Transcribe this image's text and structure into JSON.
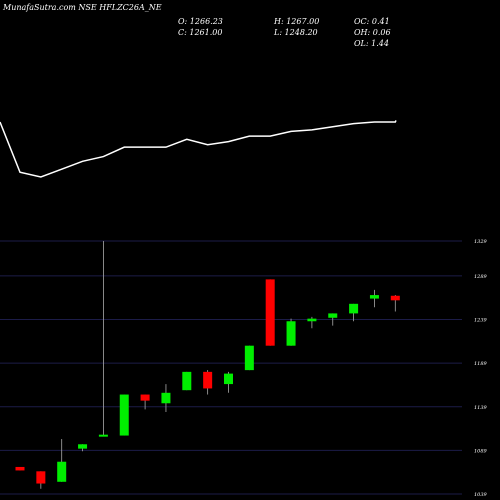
{
  "header": {
    "title": "MunafaSutra.com NSE HFLZC26A_NE",
    "ohlc": {
      "open": "O: 1266.23",
      "close": "C: 1261.00",
      "high": "H: 1267.00",
      "low": "L: 1248.20",
      "oc": "OC: 0.41",
      "oh": "OH: 0.06",
      "ol": "OL: 1.44"
    }
  },
  "colors": {
    "background": "#000000",
    "up": "#00ee00",
    "down": "#ff0000",
    "line": "#ffffff",
    "grid": "#1c1c48"
  },
  "chart_data": {
    "type": "candlestick",
    "y_ticks": [
      1329,
      1289,
      1239,
      1189,
      1139,
      1089,
      1039
    ],
    "ylim": [
      1039,
      1329
    ],
    "grid": true,
    "candles": [
      {
        "open": 1070,
        "close": 1066,
        "high": 1070,
        "low": 1066
      },
      {
        "open": 1065,
        "close": 1051,
        "high": 1065,
        "low": 1045
      },
      {
        "open": 1053,
        "close": 1076,
        "high": 1102,
        "low": 1053
      },
      {
        "open": 1091,
        "close": 1096,
        "high": 1096,
        "low": 1088
      },
      {
        "open": 1105,
        "close": 1107,
        "high": 1329,
        "low": 1105
      },
      {
        "open": 1106,
        "close": 1153,
        "high": 1153,
        "low": 1106
      },
      {
        "open": 1153,
        "close": 1146,
        "high": 1153,
        "low": 1136
      },
      {
        "open": 1143,
        "close": 1155,
        "high": 1165,
        "low": 1133
      },
      {
        "open": 1158,
        "close": 1179,
        "high": 1179,
        "low": 1158
      },
      {
        "open": 1179,
        "close": 1160,
        "high": 1181,
        "low": 1153
      },
      {
        "open": 1165,
        "close": 1177,
        "high": 1179,
        "low": 1155
      },
      {
        "open": 1181,
        "close": 1209,
        "high": 1209,
        "low": 1181
      },
      {
        "open": 1285,
        "close": 1209,
        "high": 1285,
        "low": 1209
      },
      {
        "open": 1209,
        "close": 1237,
        "high": 1240,
        "low": 1209
      },
      {
        "open": 1237,
        "close": 1240,
        "high": 1242,
        "low": 1229
      },
      {
        "open": 1241,
        "close": 1246,
        "high": 1246,
        "low": 1232
      },
      {
        "open": 1246,
        "close": 1257,
        "high": 1257,
        "low": 1237
      },
      {
        "open": 1263,
        "close": 1267,
        "high": 1273,
        "low": 1253
      },
      {
        "open": 1266.23,
        "close": 1261.0,
        "high": 1267.0,
        "low": 1248.2
      }
    ],
    "overlay_line": [
      48,
      42,
      52,
      62,
      68,
      80,
      80,
      80,
      90,
      83,
      87,
      94,
      94,
      100,
      102,
      106,
      110,
      112,
      112
    ]
  }
}
